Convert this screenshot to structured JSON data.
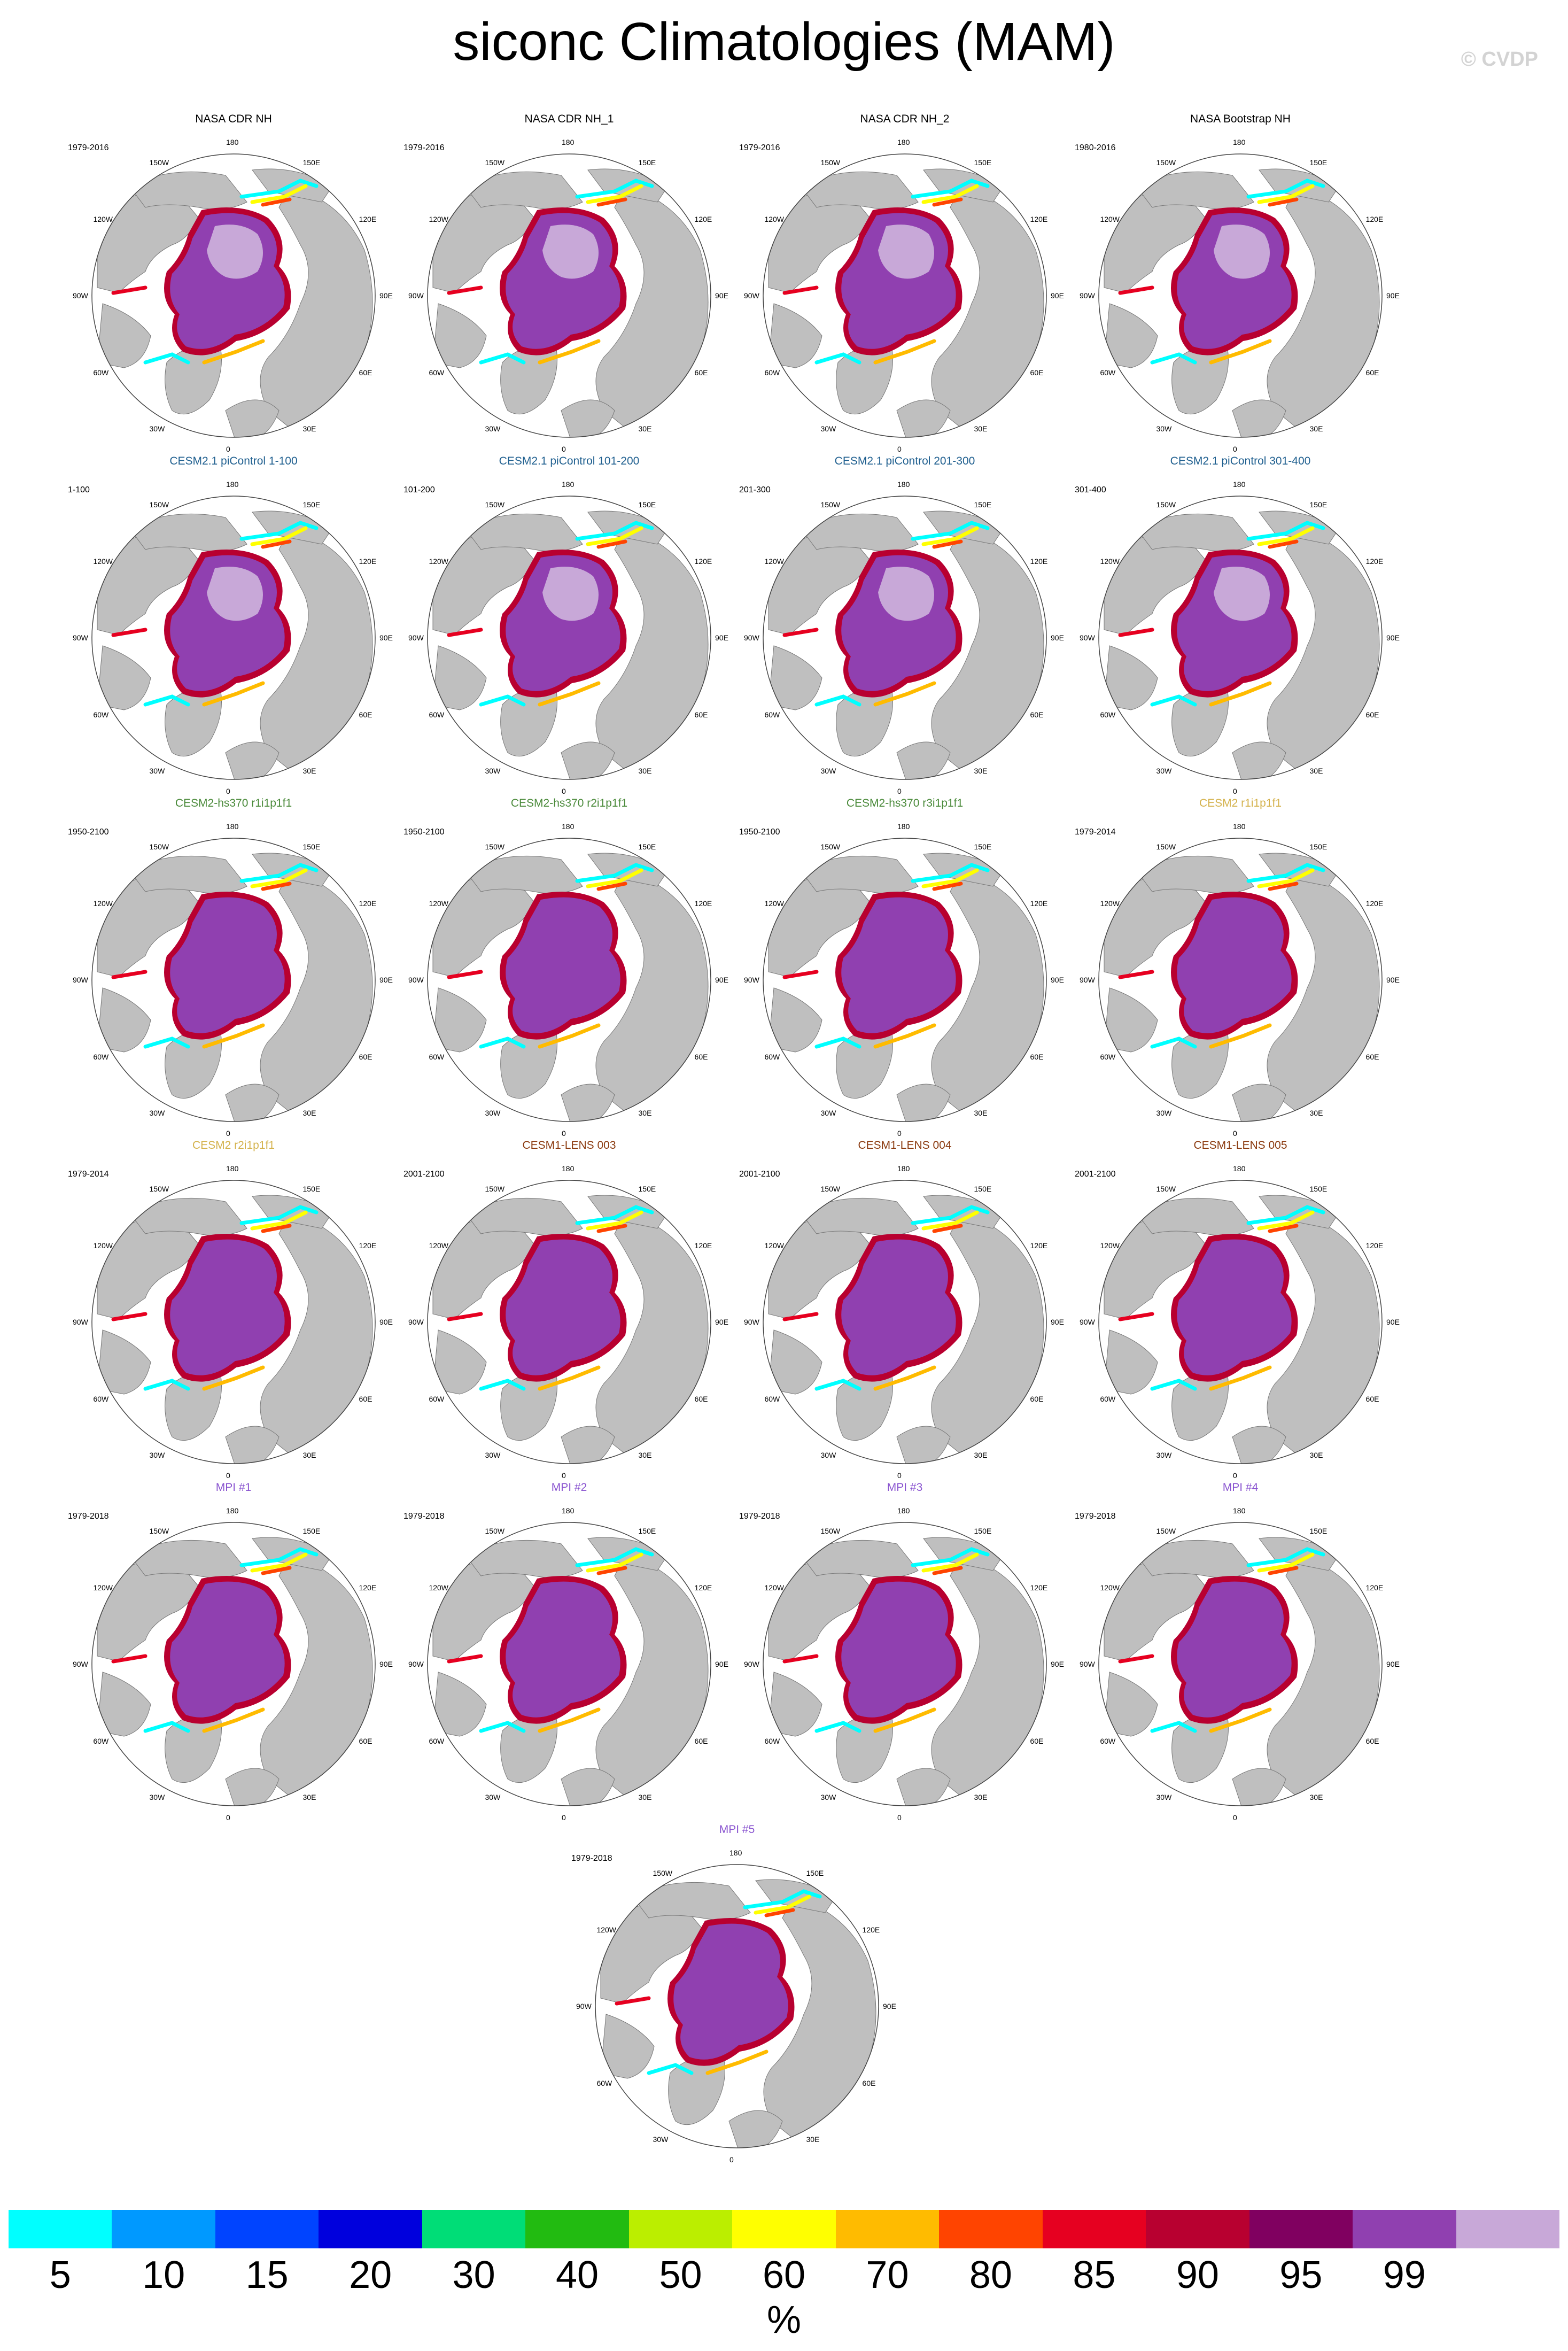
{
  "figure": {
    "title": "siconc Climatologies (MAM)",
    "copyright": "© CVDP"
  },
  "longitude_labels": [
    "180",
    "150E",
    "120E",
    "90E",
    "60E",
    "30E",
    "0",
    "30W",
    "60W",
    "90W",
    "120W",
    "150W"
  ],
  "panels": [
    {
      "title": "NASA CDR NH",
      "years": "1979-2016",
      "title_color": "#000000",
      "style": "obs"
    },
    {
      "title": "NASA CDR NH_1",
      "years": "1979-2016",
      "title_color": "#000000",
      "style": "obs"
    },
    {
      "title": "NASA CDR NH_2",
      "years": "1979-2016",
      "title_color": "#000000",
      "style": "obs"
    },
    {
      "title": "NASA Bootstrap NH",
      "years": "1980-2016",
      "title_color": "#000000",
      "style": "obs"
    },
    {
      "title": "CESM2.1 piControl 1-100",
      "years": "1-100",
      "title_color": "#1f5f8f",
      "style": "pictrl"
    },
    {
      "title": "CESM2.1 piControl 101-200",
      "years": "101-200",
      "title_color": "#1f5f8f",
      "style": "pictrl"
    },
    {
      "title": "CESM2.1 piControl 201-300",
      "years": "201-300",
      "title_color": "#1f5f8f",
      "style": "pictrl"
    },
    {
      "title": "CESM2.1 piControl 301-400",
      "years": "301-400",
      "title_color": "#1f5f8f",
      "style": "pictrl"
    },
    {
      "title": "CESM2-hs370 r1i1p1f1",
      "years": "1950-2100",
      "title_color": "#4a8a3a",
      "style": "model"
    },
    {
      "title": "CESM2-hs370 r2i1p1f1",
      "years": "1950-2100",
      "title_color": "#4a8a3a",
      "style": "model"
    },
    {
      "title": "CESM2-hs370 r3i1p1f1",
      "years": "1950-2100",
      "title_color": "#4a8a3a",
      "style": "model"
    },
    {
      "title": "CESM2 r1i1p1f1",
      "years": "1979-2014",
      "title_color": "#d4b24c",
      "style": "model"
    },
    {
      "title": "CESM2 r2i1p1f1",
      "years": "1979-2014",
      "title_color": "#d4b24c",
      "style": "model"
    },
    {
      "title": "CESM1-LENS 003",
      "years": "2001-2100",
      "title_color": "#8b3a0f",
      "style": "model"
    },
    {
      "title": "CESM1-LENS 004",
      "years": "2001-2100",
      "title_color": "#8b3a0f",
      "style": "model"
    },
    {
      "title": "CESM1-LENS 005",
      "years": "2001-2100",
      "title_color": "#8b3a0f",
      "style": "model"
    },
    {
      "title": "MPI #1",
      "years": "1979-2018",
      "title_color": "#8a55d0",
      "style": "model"
    },
    {
      "title": "MPI #2",
      "years": "1979-2018",
      "title_color": "#8a55d0",
      "style": "model"
    },
    {
      "title": "MPI #3",
      "years": "1979-2018",
      "title_color": "#8a55d0",
      "style": "model"
    },
    {
      "title": "MPI #4",
      "years": "1979-2018",
      "title_color": "#8a55d0",
      "style": "model"
    },
    {
      "title": "MPI #5",
      "years": "1979-2018",
      "title_color": "#8a55d0",
      "style": "model"
    }
  ],
  "colorbar": {
    "labels": [
      "5",
      "10",
      "15",
      "20",
      "30",
      "40",
      "50",
      "60",
      "70",
      "80",
      "85",
      "90",
      "95",
      "99"
    ],
    "colors": [
      "#00ffff",
      "#0099ff",
      "#0044ff",
      "#0000dd",
      "#00dd77",
      "#22bb11",
      "#bbee00",
      "#ffff00",
      "#ffbb00",
      "#ff4400",
      "#e60020",
      "#b80030",
      "#800060",
      "#9040b0",
      "#c8a8d8"
    ],
    "units": "%"
  },
  "map_colors": {
    "land": "#bfbfbf",
    "ocean": "#ffffff",
    "edge": "#444444",
    "ice_core_obs": "#c8a8d8",
    "ice_core_model": "#9040b0"
  }
}
